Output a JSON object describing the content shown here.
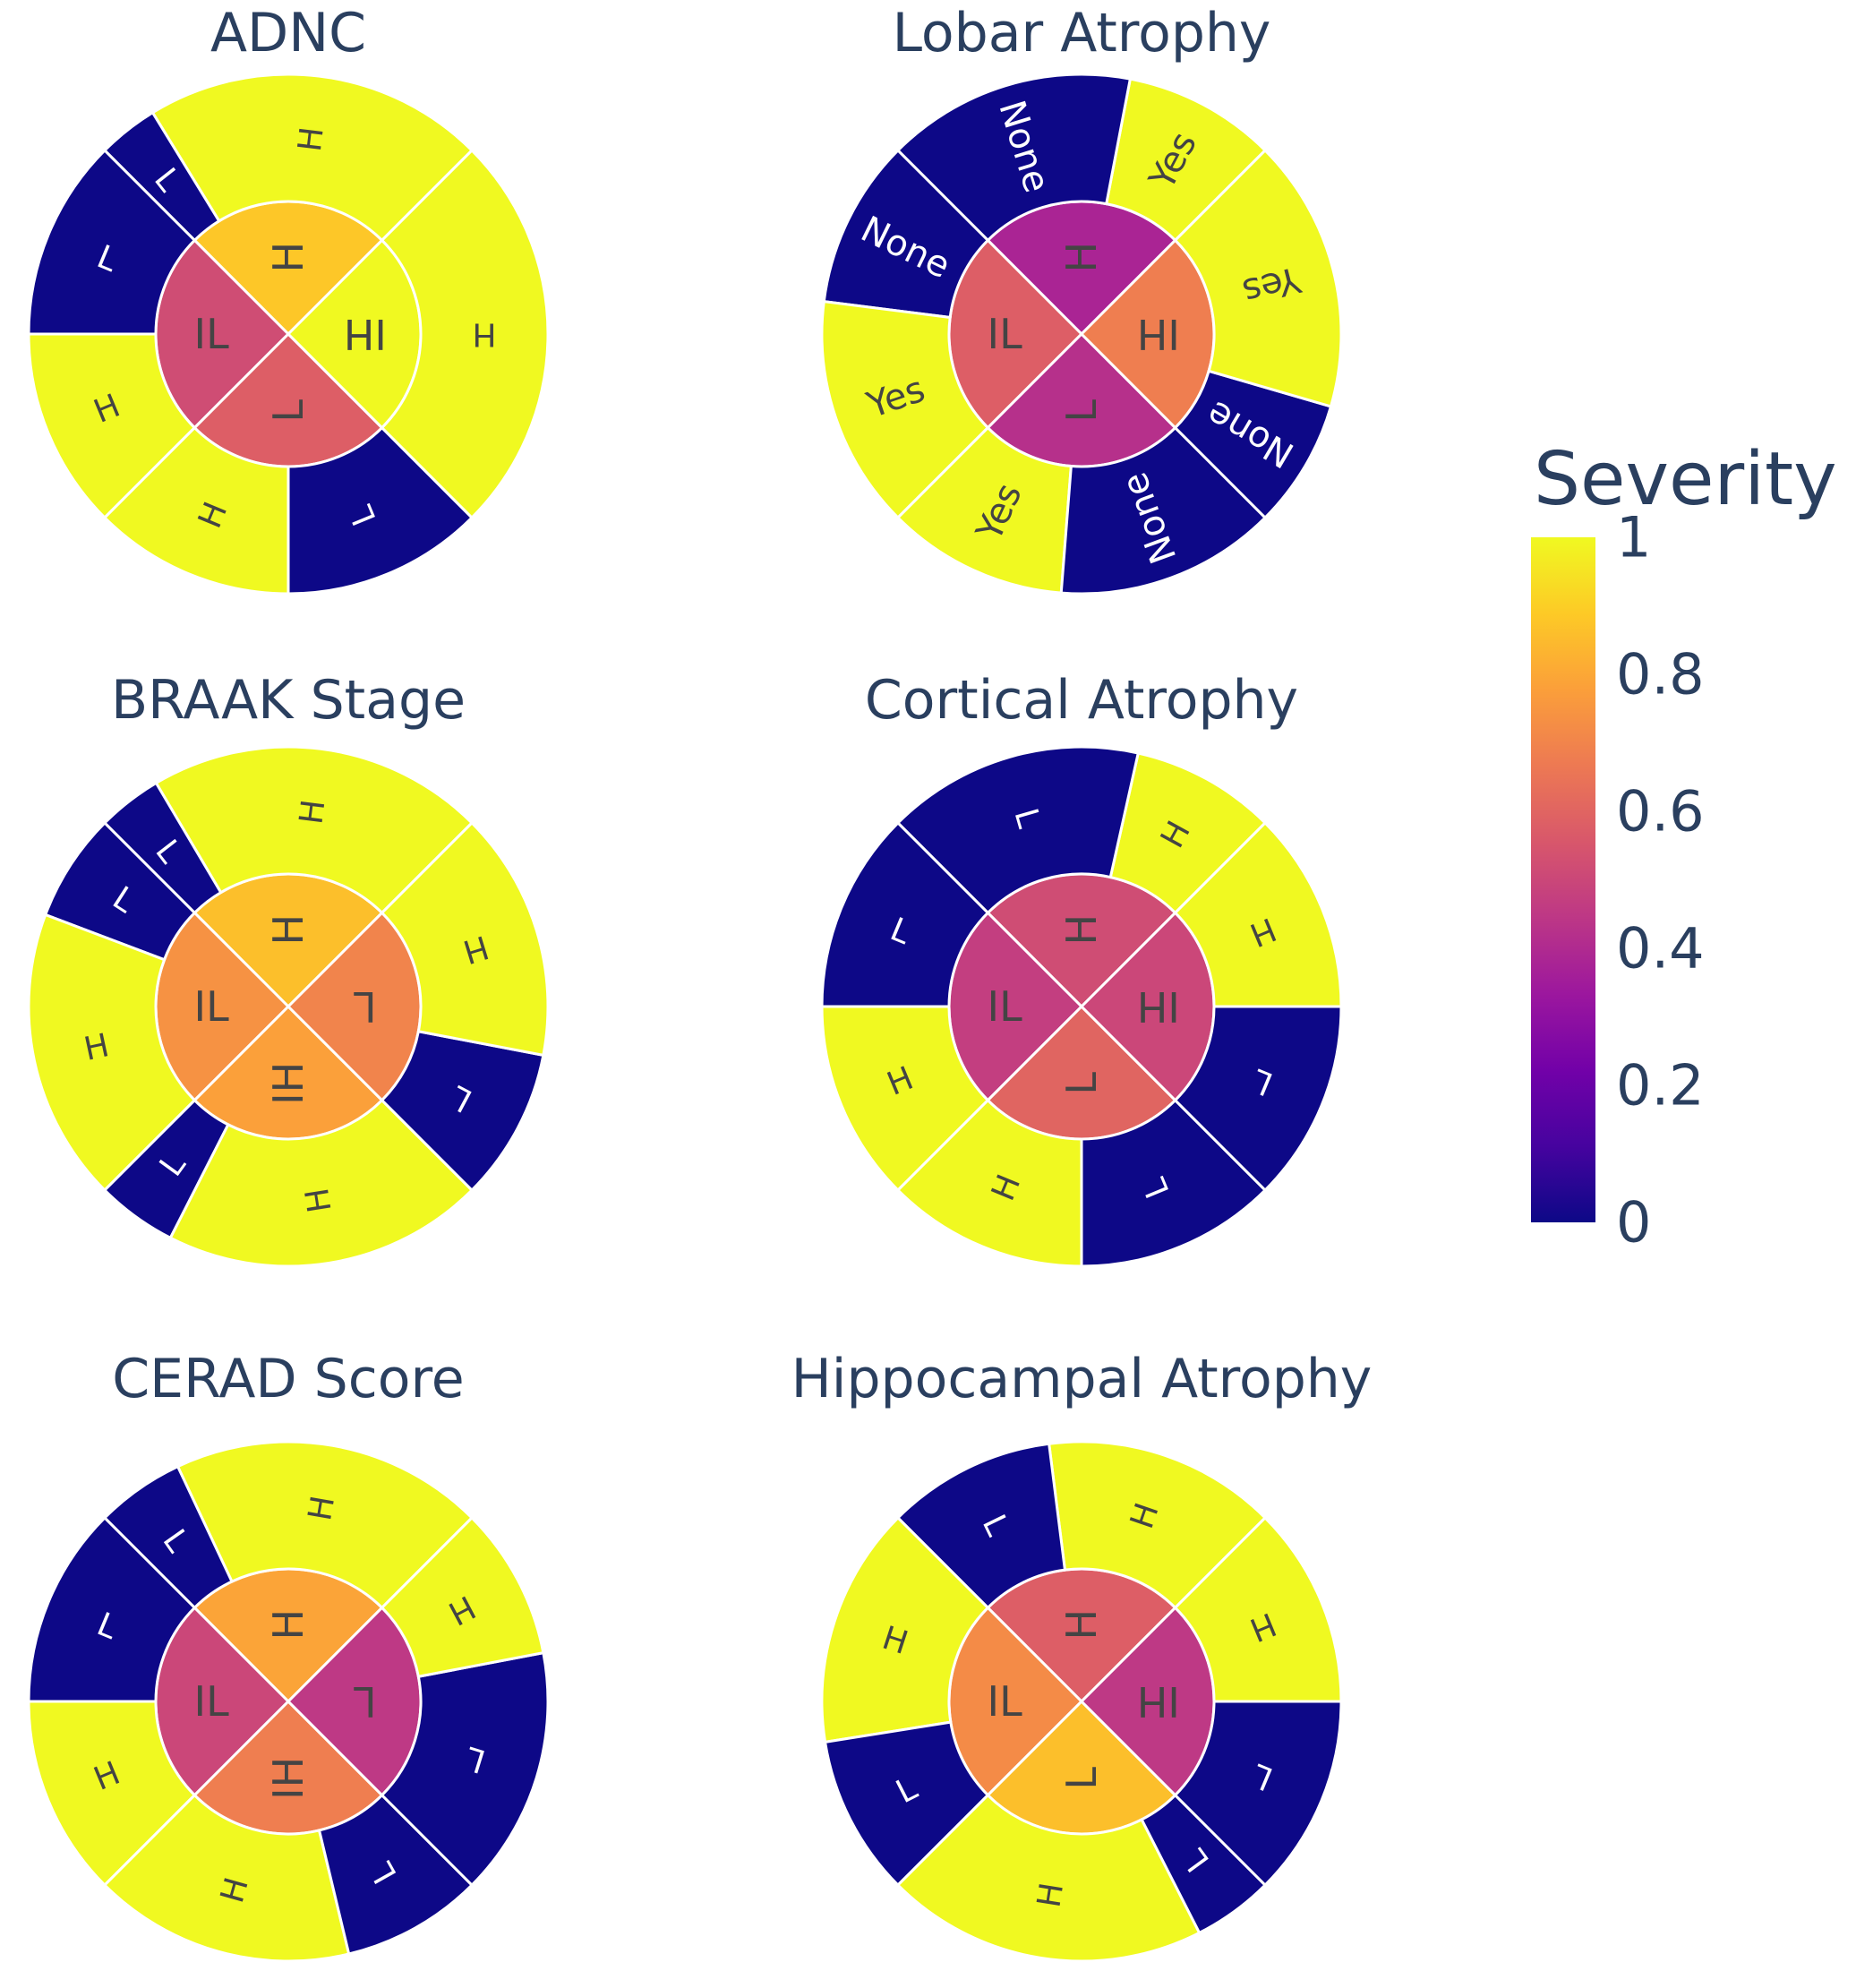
{
  "colorscale": [
    "#0d0887",
    "#46039f",
    "#7201a8",
    "#9c179e",
    "#bd3786",
    "#d8576b",
    "#ed7953",
    "#fb9f3a",
    "#fdca26",
    "#f0f921"
  ],
  "colorbar": {
    "title": "Severity",
    "ticks": [
      {
        "value": 1,
        "label": "1"
      },
      {
        "value": 0.8,
        "label": "0.8"
      },
      {
        "value": 0.6,
        "label": "0.6"
      },
      {
        "value": 0.4,
        "label": "0.4"
      },
      {
        "value": 0.2,
        "label": "0.2"
      },
      {
        "value": 0,
        "label": "0"
      }
    ]
  },
  "chart_data": [
    {
      "type": "sunburst",
      "title": "ADNC",
      "segments": [
        {
          "label": "H",
          "severity": 0.88,
          "children": [
            {
              "label": "H",
              "severity": 1,
              "share": 0.85
            },
            {
              "label": "L",
              "severity": 0,
              "share": 0.15
            }
          ]
        },
        {
          "label": "IL",
          "severity": 0.52,
          "children": [
            {
              "label": "L",
              "severity": 0,
              "share": 0.5
            },
            {
              "label": "H",
              "severity": 1,
              "share": 0.5
            }
          ]
        },
        {
          "label": "L",
          "severity": 0.58,
          "children": [
            {
              "label": "H",
              "severity": 1,
              "share": 0.5
            },
            {
              "label": "L",
              "severity": 0,
              "share": 0.5
            }
          ]
        },
        {
          "label": "IH",
          "severity": 1,
          "children": [
            {
              "label": "H",
              "severity": 1,
              "share": 1
            }
          ]
        }
      ]
    },
    {
      "type": "sunburst",
      "title": "Lobar Atrophy",
      "segments": [
        {
          "label": "H",
          "severity": 0.38,
          "children": [
            {
              "label": "Yes",
              "severity": 1,
              "share": 0.38
            },
            {
              "label": "None",
              "severity": 0,
              "share": 0.62
            }
          ]
        },
        {
          "label": "IL",
          "severity": 0.58,
          "children": [
            {
              "label": "None",
              "severity": 0,
              "share": 0.42
            },
            {
              "label": "Yes",
              "severity": 1,
              "share": 0.58
            }
          ]
        },
        {
          "label": "L",
          "severity": 0.42,
          "children": [
            {
              "label": "Yes",
              "severity": 1,
              "share": 0.45
            },
            {
              "label": "None",
              "severity": 0,
              "share": 0.55
            }
          ]
        },
        {
          "label": "IH",
          "severity": 0.68,
          "children": [
            {
              "label": "None",
              "severity": 0,
              "share": 0.32
            },
            {
              "label": "Yes",
              "severity": 1,
              "share": 0.68
            }
          ]
        }
      ]
    },
    {
      "type": "sunburst",
      "title": "BRAAK Stage",
      "segments": [
        {
          "label": "H",
          "severity": 0.86,
          "children": [
            {
              "label": "H",
              "severity": 1,
              "share": 0.84
            },
            {
              "label": "L",
              "severity": 0,
              "share": 0.16
            }
          ]
        },
        {
          "label": "IL",
          "severity": 0.74,
          "children": [
            {
              "label": "L",
              "severity": 0,
              "share": 0.27
            },
            {
              "label": "H",
              "severity": 1,
              "share": 0.73
            }
          ]
        },
        {
          "label": "IH",
          "severity": 0.78,
          "children": [
            {
              "label": "L",
              "severity": 0,
              "share": 0.2
            },
            {
              "label": "H",
              "severity": 1,
              "share": 0.8
            }
          ]
        },
        {
          "label": "L",
          "severity": 0.7,
          "children": [
            {
              "label": "L",
              "severity": 0,
              "share": 0.38
            },
            {
              "label": "H",
              "severity": 1,
              "share": 0.62
            }
          ]
        }
      ]
    },
    {
      "type": "sunburst",
      "title": "Cortical Atrophy",
      "segments": [
        {
          "label": "H",
          "severity": 0.52,
          "children": [
            {
              "label": "H",
              "severity": 1,
              "share": 0.36
            },
            {
              "label": "L",
              "severity": 0,
              "share": 0.64
            }
          ]
        },
        {
          "label": "IL",
          "severity": 0.47,
          "children": [
            {
              "label": "L",
              "severity": 0,
              "share": 0.5
            },
            {
              "label": "H",
              "severity": 1,
              "share": 0.5
            }
          ]
        },
        {
          "label": "L",
          "severity": 0.6,
          "children": [
            {
              "label": "H",
              "severity": 1,
              "share": 0.5
            },
            {
              "label": "L",
              "severity": 0,
              "share": 0.5
            }
          ]
        },
        {
          "label": "IH",
          "severity": 0.5,
          "children": [
            {
              "label": "L",
              "severity": 0,
              "share": 0.5
            },
            {
              "label": "H",
              "severity": 1,
              "share": 0.5
            }
          ]
        }
      ]
    },
    {
      "type": "sunburst",
      "title": "CERAD Score",
      "segments": [
        {
          "label": "H",
          "severity": 0.79,
          "children": [
            {
              "label": "H",
              "severity": 1,
              "share": 0.78
            },
            {
              "label": "L",
              "severity": 0,
              "share": 0.22
            }
          ]
        },
        {
          "label": "IL",
          "severity": 0.5,
          "children": [
            {
              "label": "L",
              "severity": 0,
              "share": 0.5
            },
            {
              "label": "H",
              "severity": 1,
              "share": 0.5
            }
          ]
        },
        {
          "label": "IH",
          "severity": 0.68,
          "children": [
            {
              "label": "H",
              "severity": 1,
              "share": 0.65
            },
            {
              "label": "L",
              "severity": 0,
              "share": 0.35
            }
          ]
        },
        {
          "label": "L",
          "severity": 0.45,
          "children": [
            {
              "label": "L",
              "severity": 0,
              "share": 0.62
            },
            {
              "label": "H",
              "severity": 1,
              "share": 0.38
            }
          ]
        }
      ]
    },
    {
      "type": "sunburst",
      "title": "Hippocampal Atrophy",
      "segments": [
        {
          "label": "H",
          "severity": 0.58,
          "children": [
            {
              "label": "H",
              "severity": 1,
              "share": 0.58
            },
            {
              "label": "L",
              "severity": 0,
              "share": 0.42
            }
          ]
        },
        {
          "label": "IL",
          "severity": 0.72,
          "children": [
            {
              "label": "H",
              "severity": 1,
              "share": 0.6
            },
            {
              "label": "L",
              "severity": 0,
              "share": 0.4
            }
          ]
        },
        {
          "label": "L",
          "severity": 0.86,
          "children": [
            {
              "label": "H",
              "severity": 1,
              "share": 0.8
            },
            {
              "label": "L",
              "severity": 0,
              "share": 0.2
            }
          ]
        },
        {
          "label": "IH",
          "severity": 0.45,
          "children": [
            {
              "label": "L",
              "severity": 0,
              "share": 0.5
            },
            {
              "label": "H",
              "severity": 1,
              "share": 0.5
            }
          ]
        }
      ]
    }
  ]
}
